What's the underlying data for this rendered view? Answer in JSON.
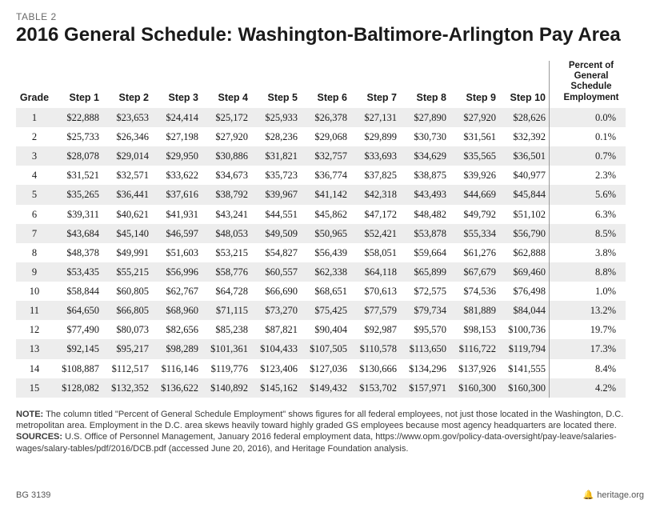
{
  "table_label": "TABLE 2",
  "title": "2016 General Schedule: Washington-Baltimore-Arlington Pay Area",
  "columns": [
    "Grade",
    "Step 1",
    "Step 2",
    "Step 3",
    "Step 4",
    "Step 5",
    "Step 6",
    "Step 7",
    "Step 8",
    "Step 9",
    "Step 10"
  ],
  "pct_header": "Percent of General Schedule Employment",
  "rows": [
    {
      "grade": "1",
      "steps": [
        "$22,888",
        "$23,653",
        "$24,414",
        "$25,172",
        "$25,933",
        "$26,378",
        "$27,131",
        "$27,890",
        "$27,920",
        "$28,626"
      ],
      "pct": "0.0%"
    },
    {
      "grade": "2",
      "steps": [
        "$25,733",
        "$26,346",
        "$27,198",
        "$27,920",
        "$28,236",
        "$29,068",
        "$29,899",
        "$30,730",
        "$31,561",
        "$32,392"
      ],
      "pct": "0.1%"
    },
    {
      "grade": "3",
      "steps": [
        "$28,078",
        "$29,014",
        "$29,950",
        "$30,886",
        "$31,821",
        "$32,757",
        "$33,693",
        "$34,629",
        "$35,565",
        "$36,501"
      ],
      "pct": "0.7%"
    },
    {
      "grade": "4",
      "steps": [
        "$31,521",
        "$32,571",
        "$33,622",
        "$34,673",
        "$35,723",
        "$36,774",
        "$37,825",
        "$38,875",
        "$39,926",
        "$40,977"
      ],
      "pct": "2.3%"
    },
    {
      "grade": "5",
      "steps": [
        "$35,265",
        "$36,441",
        "$37,616",
        "$38,792",
        "$39,967",
        "$41,142",
        "$42,318",
        "$43,493",
        "$44,669",
        "$45,844"
      ],
      "pct": "5.6%"
    },
    {
      "grade": "6",
      "steps": [
        "$39,311",
        "$40,621",
        "$41,931",
        "$43,241",
        "$44,551",
        "$45,862",
        "$47,172",
        "$48,482",
        "$49,792",
        "$51,102"
      ],
      "pct": "6.3%"
    },
    {
      "grade": "7",
      "steps": [
        "$43,684",
        "$45,140",
        "$46,597",
        "$48,053",
        "$49,509",
        "$50,965",
        "$52,421",
        "$53,878",
        "$55,334",
        "$56,790"
      ],
      "pct": "8.5%"
    },
    {
      "grade": "8",
      "steps": [
        "$48,378",
        "$49,991",
        "$51,603",
        "$53,215",
        "$54,827",
        "$56,439",
        "$58,051",
        "$59,664",
        "$61,276",
        "$62,888"
      ],
      "pct": "3.8%"
    },
    {
      "grade": "9",
      "steps": [
        "$53,435",
        "$55,215",
        "$56,996",
        "$58,776",
        "$60,557",
        "$62,338",
        "$64,118",
        "$65,899",
        "$67,679",
        "$69,460"
      ],
      "pct": "8.8%"
    },
    {
      "grade": "10",
      "steps": [
        "$58,844",
        "$60,805",
        "$62,767",
        "$64,728",
        "$66,690",
        "$68,651",
        "$70,613",
        "$72,575",
        "$74,536",
        "$76,498"
      ],
      "pct": "1.0%"
    },
    {
      "grade": "11",
      "steps": [
        "$64,650",
        "$66,805",
        "$68,960",
        "$71,115",
        "$73,270",
        "$75,425",
        "$77,579",
        "$79,734",
        "$81,889",
        "$84,044"
      ],
      "pct": "13.2%"
    },
    {
      "grade": "12",
      "steps": [
        "$77,490",
        "$80,073",
        "$82,656",
        "$85,238",
        "$87,821",
        "$90,404",
        "$92,987",
        "$95,570",
        "$98,153",
        "$100,736"
      ],
      "pct": "19.7%"
    },
    {
      "grade": "13",
      "steps": [
        "$92,145",
        "$95,217",
        "$98,289",
        "$101,361",
        "$104,433",
        "$107,505",
        "$110,578",
        "$113,650",
        "$116,722",
        "$119,794"
      ],
      "pct": "17.3%"
    },
    {
      "grade": "14",
      "steps": [
        "$108,887",
        "$112,517",
        "$116,146",
        "$119,776",
        "$123,406",
        "$127,036",
        "$130,666",
        "$134,296",
        "$137,926",
        "$141,555"
      ],
      "pct": "8.4%"
    },
    {
      "grade": "15",
      "steps": [
        "$128,082",
        "$132,352",
        "$136,622",
        "$140,892",
        "$145,162",
        "$149,432",
        "$153,702",
        "$157,971",
        "$160,300",
        "$160,300"
      ],
      "pct": "4.2%"
    }
  ],
  "note_label": "NOTE:",
  "note_text": " The column titled \"Percent of General Schedule Employment\" shows figures for all federal employees, not just those located in the Washington, D.C. metropolitan area. Employment in the D.C. area skews heavily toward highly graded GS employees because most agency headquarters are located there.",
  "sources_label": "SOURCES:",
  "sources_text": " U.S. Office of Personnel Management, January 2016 federal employment data, https://www.opm.gov/policy-data-oversight/pay-leave/salaries-wages/salary-tables/pdf/2016/DCB.pdf (accessed June 20, 2016), and Heritage Foundation analysis.",
  "footer_left": "BG 3139",
  "footer_right": "heritage.org",
  "style": {
    "shade_color": "#ededed",
    "divider_color": "#9a9a9a",
    "body_font": "Georgia",
    "header_font": "Arial",
    "title_fontsize": 24,
    "cell_fontsize": 12.5,
    "notes_fontsize": 11
  }
}
